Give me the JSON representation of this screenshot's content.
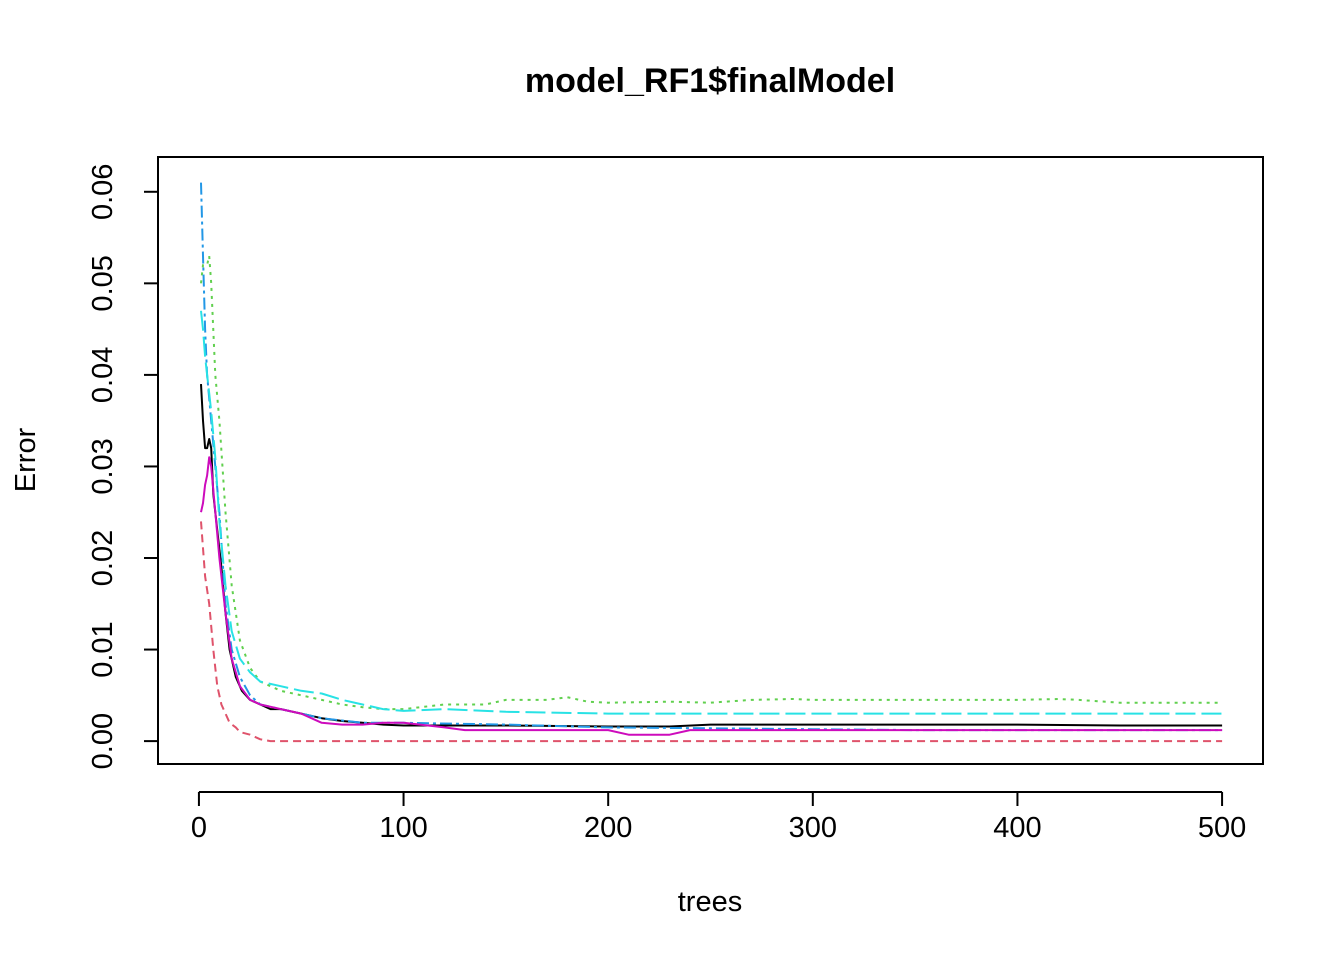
{
  "chart_data": {
    "type": "line",
    "title": "model_RF1$finalModel",
    "xlabel": "trees",
    "ylabel": "Error",
    "xlim": [
      -20,
      520
    ],
    "ylim": [
      -0.0025,
      0.0638
    ],
    "x_ticks": [
      0,
      100,
      200,
      300,
      400,
      500
    ],
    "y_ticks": [
      0.0,
      0.01,
      0.02,
      0.03,
      0.04,
      0.05,
      0.06
    ],
    "y_tick_labels": [
      "0.00",
      "0.01",
      "0.02",
      "0.03",
      "0.04",
      "0.05",
      "0.06"
    ],
    "grid": false,
    "legend": "none",
    "series": [
      {
        "color": "#000000",
        "dash": "solid",
        "points": [
          [
            1,
            0.039
          ],
          [
            2,
            0.035
          ],
          [
            3,
            0.032
          ],
          [
            4,
            0.032
          ],
          [
            5,
            0.033
          ],
          [
            6,
            0.032
          ],
          [
            7,
            0.027
          ],
          [
            9,
            0.023
          ],
          [
            11,
            0.019
          ],
          [
            13,
            0.014
          ],
          [
            15,
            0.01
          ],
          [
            18,
            0.007
          ],
          [
            21,
            0.0055
          ],
          [
            25,
            0.0045
          ],
          [
            30,
            0.004
          ],
          [
            35,
            0.0035
          ],
          [
            40,
            0.0035
          ],
          [
            50,
            0.003
          ],
          [
            60,
            0.0025
          ],
          [
            70,
            0.0022
          ],
          [
            80,
            0.002
          ],
          [
            90,
            0.0018
          ],
          [
            100,
            0.0017
          ],
          [
            120,
            0.0017
          ],
          [
            150,
            0.0017
          ],
          [
            200,
            0.0016
          ],
          [
            230,
            0.0016
          ],
          [
            250,
            0.0018
          ],
          [
            300,
            0.0018
          ],
          [
            350,
            0.0018
          ],
          [
            400,
            0.0018
          ],
          [
            450,
            0.0017
          ],
          [
            500,
            0.0017
          ]
        ]
      },
      {
        "color": "#DF536B",
        "dash": "8,5",
        "points": [
          [
            1,
            0.024
          ],
          [
            3,
            0.018
          ],
          [
            5,
            0.015
          ],
          [
            7,
            0.01
          ],
          [
            9,
            0.006
          ],
          [
            11,
            0.004
          ],
          [
            13,
            0.003
          ],
          [
            15,
            0.002
          ],
          [
            18,
            0.0015
          ],
          [
            20,
            0.001
          ],
          [
            25,
            0.0007
          ],
          [
            30,
            0.0002
          ],
          [
            35,
            0
          ],
          [
            100,
            0
          ],
          [
            200,
            0
          ],
          [
            300,
            0
          ],
          [
            400,
            0
          ],
          [
            500,
            0
          ]
        ]
      },
      {
        "color": "#61D04F",
        "dash": "3,5",
        "points": [
          [
            1,
            0.05
          ],
          [
            2,
            0.052
          ],
          [
            4,
            0.052
          ],
          [
            5,
            0.053
          ],
          [
            6,
            0.05
          ],
          [
            8,
            0.04
          ],
          [
            10,
            0.035
          ],
          [
            13,
            0.025
          ],
          [
            16,
            0.017
          ],
          [
            20,
            0.011
          ],
          [
            25,
            0.008
          ],
          [
            30,
            0.0065
          ],
          [
            40,
            0.0055
          ],
          [
            50,
            0.005
          ],
          [
            60,
            0.0045
          ],
          [
            70,
            0.004
          ],
          [
            80,
            0.0037
          ],
          [
            90,
            0.0035
          ],
          [
            100,
            0.0035
          ],
          [
            120,
            0.004
          ],
          [
            140,
            0.004
          ],
          [
            150,
            0.0045
          ],
          [
            170,
            0.0045
          ],
          [
            180,
            0.0048
          ],
          [
            190,
            0.0043
          ],
          [
            200,
            0.0042
          ],
          [
            230,
            0.0043
          ],
          [
            250,
            0.0042
          ],
          [
            270,
            0.0045
          ],
          [
            290,
            0.0046
          ],
          [
            300,
            0.0045
          ],
          [
            350,
            0.0045
          ],
          [
            400,
            0.0045
          ],
          [
            420,
            0.0046
          ],
          [
            430,
            0.0045
          ],
          [
            450,
            0.0042
          ],
          [
            500,
            0.0042
          ]
        ]
      },
      {
        "color": "#2297E6",
        "dash": "12,4,3,4",
        "points": [
          [
            1,
            0.061
          ],
          [
            2,
            0.053
          ],
          [
            3,
            0.045
          ],
          [
            4,
            0.04
          ],
          [
            6,
            0.035
          ],
          [
            8,
            0.03
          ],
          [
            10,
            0.025
          ],
          [
            13,
            0.015
          ],
          [
            16,
            0.01
          ],
          [
            20,
            0.007
          ],
          [
            25,
            0.005
          ],
          [
            30,
            0.004
          ],
          [
            40,
            0.0035
          ],
          [
            50,
            0.003
          ],
          [
            60,
            0.0025
          ],
          [
            80,
            0.002
          ],
          [
            100,
            0.002
          ],
          [
            150,
            0.0018
          ],
          [
            200,
            0.0015
          ],
          [
            250,
            0.0014
          ],
          [
            300,
            0.0013
          ],
          [
            350,
            0.0012
          ],
          [
            400,
            0.0012
          ],
          [
            450,
            0.0012
          ],
          [
            500,
            0.0012
          ]
        ]
      },
      {
        "color": "#28E2E5",
        "dash": "20,6",
        "points": [
          [
            1,
            0.047
          ],
          [
            2,
            0.045
          ],
          [
            3,
            0.042
          ],
          [
            4,
            0.04
          ],
          [
            5,
            0.038
          ],
          [
            6,
            0.036
          ],
          [
            8,
            0.031
          ],
          [
            10,
            0.024
          ],
          [
            13,
            0.017
          ],
          [
            16,
            0.012
          ],
          [
            20,
            0.009
          ],
          [
            25,
            0.0075
          ],
          [
            30,
            0.0065
          ],
          [
            40,
            0.006
          ],
          [
            50,
            0.0055
          ],
          [
            60,
            0.0052
          ],
          [
            70,
            0.0045
          ],
          [
            80,
            0.004
          ],
          [
            90,
            0.0035
          ],
          [
            100,
            0.0033
          ],
          [
            120,
            0.0035
          ],
          [
            150,
            0.0032
          ],
          [
            200,
            0.003
          ],
          [
            250,
            0.003
          ],
          [
            300,
            0.003
          ],
          [
            350,
            0.003
          ],
          [
            400,
            0.003
          ],
          [
            450,
            0.003
          ],
          [
            500,
            0.003
          ]
        ]
      },
      {
        "color": "#CD0BBC",
        "dash": "solid",
        "points": [
          [
            1,
            0.025
          ],
          [
            2,
            0.026
          ],
          [
            3,
            0.028
          ],
          [
            4,
            0.029
          ],
          [
            5,
            0.031
          ],
          [
            6,
            0.03
          ],
          [
            8,
            0.025
          ],
          [
            10,
            0.02
          ],
          [
            13,
            0.014
          ],
          [
            16,
            0.009
          ],
          [
            20,
            0.006
          ],
          [
            25,
            0.0045
          ],
          [
            30,
            0.004
          ],
          [
            40,
            0.0035
          ],
          [
            50,
            0.003
          ],
          [
            60,
            0.002
          ],
          [
            70,
            0.0018
          ],
          [
            80,
            0.0018
          ],
          [
            90,
            0.002
          ],
          [
            100,
            0.002
          ],
          [
            120,
            0.0015
          ],
          [
            130,
            0.0012
          ],
          [
            150,
            0.0012
          ],
          [
            200,
            0.0012
          ],
          [
            210,
            0.0007
          ],
          [
            230,
            0.0007
          ],
          [
            240,
            0.0012
          ],
          [
            300,
            0.0012
          ],
          [
            350,
            0.0012
          ],
          [
            400,
            0.0012
          ],
          [
            450,
            0.0012
          ],
          [
            500,
            0.0012
          ]
        ]
      }
    ]
  }
}
